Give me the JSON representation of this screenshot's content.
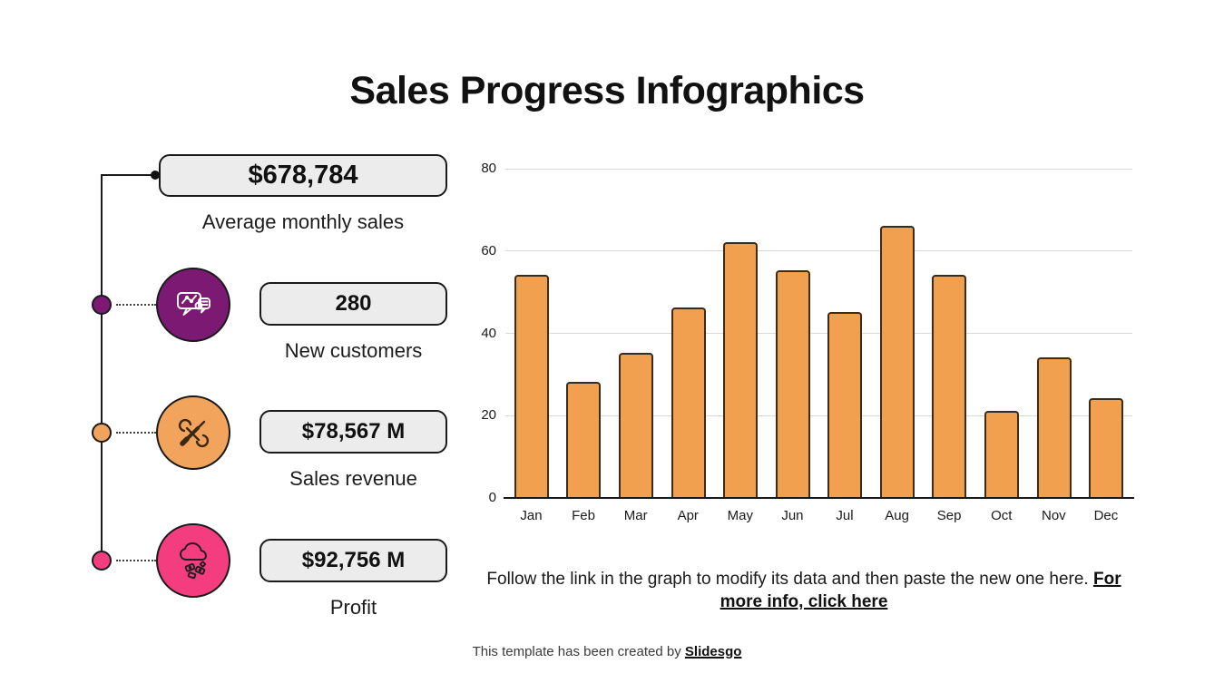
{
  "title": "Sales Progress Infographics",
  "colors": {
    "purple": "#7C1A73",
    "orange": "#F2A35C",
    "pink": "#F43D7F",
    "bar_fill": "#F0A04E",
    "bar_border": "#3D2B15",
    "box_fill": "#ECECEC",
    "box_border": "#1A1A1A",
    "gridline": "#D9D9D9"
  },
  "stats": [
    {
      "value": "$678,784",
      "label": "Average monthly sales"
    },
    {
      "value": "280",
      "label": "New customers",
      "icon": "chat-analytics-icon",
      "color": "#7C1A73"
    },
    {
      "value": "$78,567 M",
      "label": "Sales revenue",
      "icon": "tools-icon",
      "color": "#F2A35C"
    },
    {
      "value": "$92,756 M",
      "label": "Profit",
      "icon": "money-rain-cloud-icon",
      "color": "#F43D7F"
    }
  ],
  "chart_data": {
    "type": "bar",
    "categories": [
      "Jan",
      "Feb",
      "Mar",
      "Apr",
      "May",
      "Jun",
      "Jul",
      "Aug",
      "Sep",
      "Oct",
      "Nov",
      "Dec"
    ],
    "values": [
      54,
      28,
      35,
      46,
      62,
      55,
      45,
      66,
      54,
      21,
      34,
      24
    ],
    "title": "",
    "xlabel": "",
    "ylabel": "",
    "ylim": [
      0,
      80
    ],
    "yticks": [
      0,
      20,
      40,
      60,
      80
    ],
    "grid": true,
    "legend": false,
    "bar_color": "#F0A04E"
  },
  "note": {
    "text": "Follow the link in the graph to modify its data and then paste the new one here.",
    "link": "For more info, click here"
  },
  "footer": {
    "text": "This template has been created by",
    "link": "Slidesgo"
  }
}
